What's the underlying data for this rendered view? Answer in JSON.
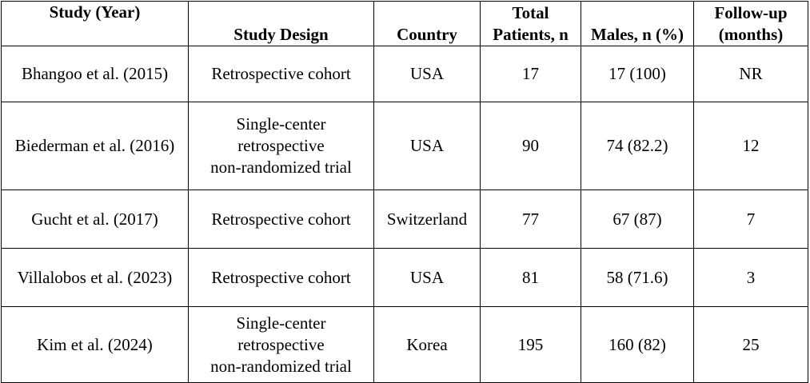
{
  "table": {
    "headers": {
      "study": "Study (Year)",
      "design": "Study Design",
      "country": "Country",
      "total_line1": "Total",
      "total_line2": "Patients, n",
      "males": "Males, n (%)",
      "followup_line1": "Follow-up",
      "followup_line2": "(months)"
    },
    "rows": [
      {
        "study": "Bhangoo et al. (2015)",
        "design": [
          "Retrospective cohort"
        ],
        "country": "USA",
        "total": "17",
        "males": "17 (100)",
        "followup": "NR"
      },
      {
        "study": "Biederman et al. (2016)",
        "design": [
          "Single-center",
          "retrospective",
          "non-randomized trial"
        ],
        "country": "USA",
        "total": "90",
        "males": "74 (82.2)",
        "followup": "12"
      },
      {
        "study": "Gucht et al. (2017)",
        "design": [
          "Retrospective cohort"
        ],
        "country": "Switzerland",
        "total": "77",
        "males": "67 (87)",
        "followup": "7"
      },
      {
        "study": "Villalobos et al. (2023)",
        "design": [
          "Retrospective cohort"
        ],
        "country": "USA",
        "total": "81",
        "males": "58 (71.6)",
        "followup": "3"
      },
      {
        "study": "Kim et al. (2024)",
        "design": [
          "Single-center",
          "retrospective",
          "non-randomized trial"
        ],
        "country": "Korea",
        "total": "195",
        "males": "160 (82)",
        "followup": "25"
      }
    ]
  }
}
